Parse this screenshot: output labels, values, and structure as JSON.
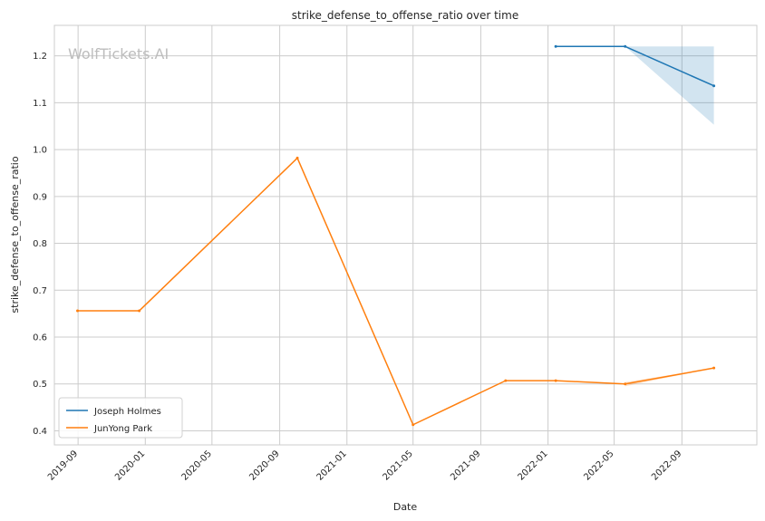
{
  "chart_data": {
    "type": "line",
    "title": "strike_defense_to_offense_ratio over time",
    "xlabel": "Date",
    "ylabel": "strike_defense_to_offense_ratio",
    "watermark": "WolfTickets.AI",
    "xlim": [
      "2019-07-20",
      "2023-01-15"
    ],
    "ylim": [
      0.37,
      1.265
    ],
    "grid": true,
    "legend_position": "lower-left",
    "x_ticks": [
      {
        "date": "2019-09-01",
        "label": "2019-09"
      },
      {
        "date": "2020-01-01",
        "label": "2020-01"
      },
      {
        "date": "2020-05-01",
        "label": "2020-05"
      },
      {
        "date": "2020-09-01",
        "label": "2020-09"
      },
      {
        "date": "2021-01-01",
        "label": "2021-01"
      },
      {
        "date": "2021-05-01",
        "label": "2021-05"
      },
      {
        "date": "2021-09-01",
        "label": "2021-09"
      },
      {
        "date": "2022-01-01",
        "label": "2022-01"
      },
      {
        "date": "2022-05-01",
        "label": "2022-05"
      },
      {
        "date": "2022-09-01",
        "label": "2022-09"
      }
    ],
    "y_ticks": [
      {
        "value": 0.4,
        "label": "0.4"
      },
      {
        "value": 0.5,
        "label": "0.5"
      },
      {
        "value": 0.6,
        "label": "0.6"
      },
      {
        "value": 0.7,
        "label": "0.7"
      },
      {
        "value": 0.8,
        "label": "0.8"
      },
      {
        "value": 0.9,
        "label": "0.9"
      },
      {
        "value": 1.0,
        "label": "1.0"
      },
      {
        "value": 1.1,
        "label": "1.1"
      },
      {
        "value": 1.2,
        "label": "1.2"
      }
    ],
    "series": [
      {
        "name": "Joseph Holmes",
        "color": "#1f77b4",
        "points": [
          {
            "x": "2022-01-15",
            "y": 1.22
          },
          {
            "x": "2022-05-21",
            "y": 1.22
          },
          {
            "x": "2022-10-29",
            "y": 1.136
          }
        ],
        "band": [
          {
            "x": "2022-05-21",
            "lower": 1.22,
            "upper": 1.22
          },
          {
            "x": "2022-10-29",
            "lower": 1.053,
            "upper": 1.22
          }
        ]
      },
      {
        "name": "JunYong Park",
        "color": "#ff7f0e",
        "points": [
          {
            "x": "2019-08-31",
            "y": 0.656
          },
          {
            "x": "2019-12-21",
            "y": 0.656
          },
          {
            "x": "2020-10-03",
            "y": 0.982
          },
          {
            "x": "2021-05-01",
            "y": 0.413
          },
          {
            "x": "2021-10-16",
            "y": 0.507
          },
          {
            "x": "2022-01-15",
            "y": 0.507
          },
          {
            "x": "2022-05-21",
            "y": 0.5
          },
          {
            "x": "2022-10-29",
            "y": 0.534
          }
        ],
        "band": [
          {
            "x": "2022-05-21",
            "lower": 0.495,
            "upper": 0.504
          },
          {
            "x": "2022-10-29",
            "lower": 0.534,
            "upper": 0.534
          }
        ]
      }
    ]
  }
}
